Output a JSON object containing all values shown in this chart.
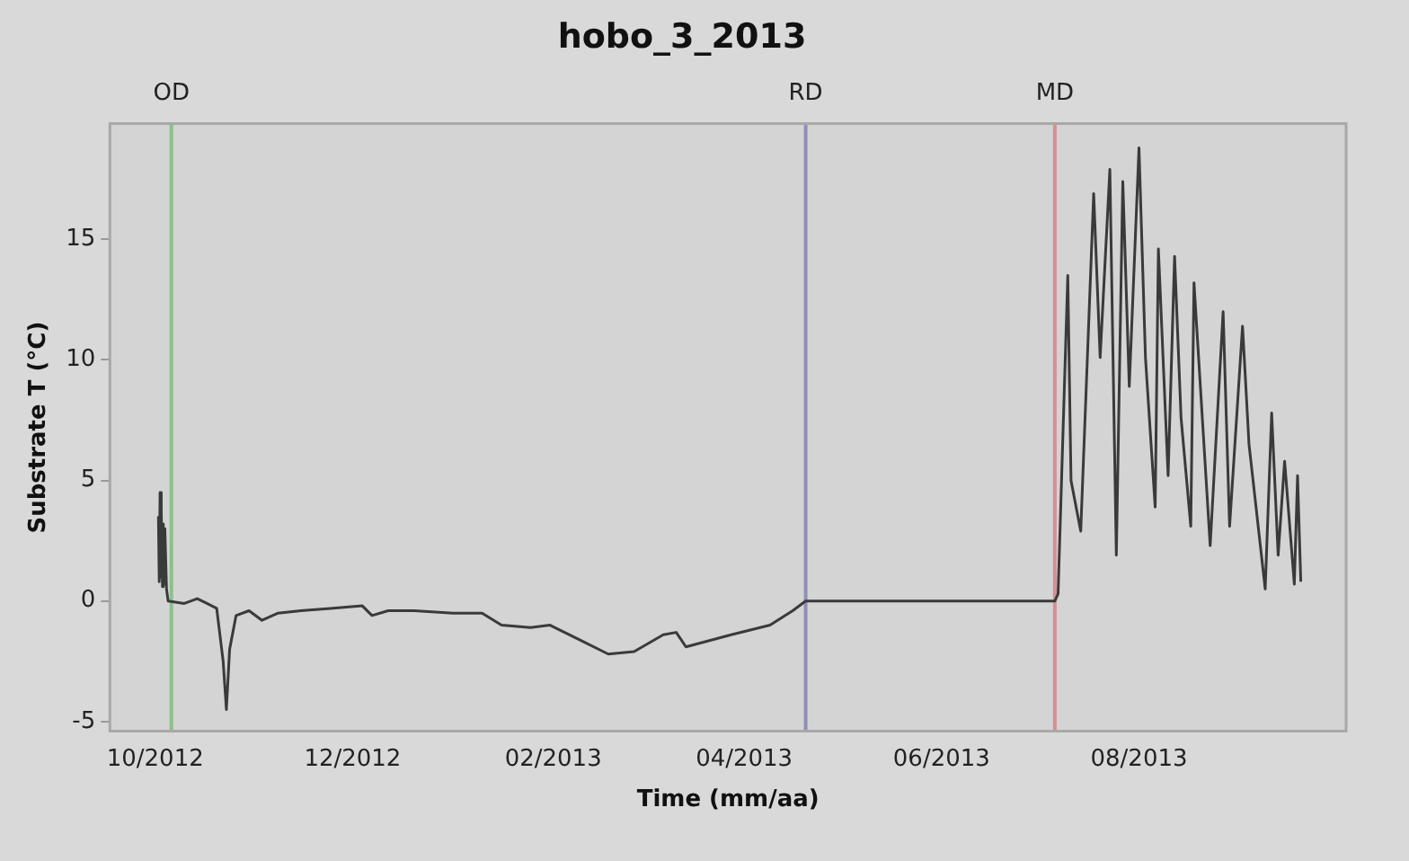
{
  "chart_data": {
    "type": "line",
    "title": "hobo_3_2013",
    "xlabel": "Time (mm/aa)",
    "ylabel": "Substrate T (°C)",
    "x": [
      "2012-10-02T00:00",
      "2012-10-02T06:00",
      "2012-10-02T12:00",
      "2012-10-02T18:00",
      "2012-10-03T00:00",
      "2012-10-03T06:00",
      "2012-10-03T12:00",
      "2012-10-03T18:00",
      "2012-10-04T00:00",
      "2012-10-04T12:00",
      "2012-10-05",
      "2012-10-10",
      "2012-10-14",
      "2012-10-17",
      "2012-10-20",
      "2012-10-22",
      "2012-10-23",
      "2012-10-24",
      "2012-10-26",
      "2012-10-30",
      "2012-11-03",
      "2012-11-08",
      "2012-11-15",
      "2012-11-25",
      "2012-12-04",
      "2012-12-07",
      "2012-12-12",
      "2012-12-20",
      "2013-01-01",
      "2013-01-10",
      "2013-01-16",
      "2013-01-25",
      "2013-01-31",
      "2013-02-09",
      "2013-02-18",
      "2013-02-26",
      "2013-03-07",
      "2013-03-11",
      "2013-03-14",
      "2013-03-28",
      "2013-04-09",
      "2013-04-16",
      "2013-04-20",
      "2013-07-06",
      "2013-07-07",
      "2013-07-10",
      "2013-07-11",
      "2013-07-14",
      "2013-07-18",
      "2013-07-20",
      "2013-07-23",
      "2013-07-25",
      "2013-07-27",
      "2013-07-29",
      "2013-08-01",
      "2013-08-03",
      "2013-08-06",
      "2013-08-07",
      "2013-08-10",
      "2013-08-12",
      "2013-08-14",
      "2013-08-17",
      "2013-08-18",
      "2013-08-23",
      "2013-08-27",
      "2013-08-29",
      "2013-09-02",
      "2013-09-04",
      "2013-09-09",
      "2013-09-11",
      "2013-09-13",
      "2013-09-15",
      "2013-09-18",
      "2013-09-19",
      "2013-09-20"
    ],
    "series": [
      {
        "color": "#3a3a3a",
        "values": [
          3.5,
          0.8,
          4.5,
          1.0,
          3.8,
          0.6,
          3.2,
          0.7,
          3.0,
          0.5,
          0.0,
          -0.1,
          0.1,
          -0.1,
          -0.3,
          -2.5,
          -4.5,
          -2.0,
          -0.6,
          -0.4,
          -0.8,
          -0.5,
          -0.4,
          -0.3,
          -0.2,
          -0.6,
          -0.4,
          -0.4,
          -0.5,
          -0.5,
          -1.0,
          -1.1,
          -1.0,
          -1.6,
          -2.2,
          -2.1,
          -1.4,
          -1.3,
          -1.9,
          -1.4,
          -1.0,
          -0.4,
          0.0,
          0.0,
          0.3,
          13.5,
          5.0,
          2.9,
          16.9,
          10.1,
          17.9,
          1.9,
          17.4,
          8.9,
          18.8,
          10.1,
          3.9,
          14.6,
          5.2,
          14.3,
          7.6,
          3.1,
          13.2,
          2.3,
          12.0,
          3.1,
          11.4,
          6.5,
          0.5,
          7.8,
          1.9,
          5.8,
          0.7,
          5.2,
          0.8
        ]
      }
    ],
    "xlim": [
      "2012-09-17",
      "2013-10-04"
    ],
    "xticks": [
      {
        "value": "2012-10-01",
        "label": "10/2012"
      },
      {
        "value": "2012-12-01",
        "label": "12/2012"
      },
      {
        "value": "2013-02-01",
        "label": "02/2013"
      },
      {
        "value": "2013-04-01",
        "label": "04/2013"
      },
      {
        "value": "2013-06-01",
        "label": "06/2013"
      },
      {
        "value": "2013-08-01",
        "label": "08/2013"
      }
    ],
    "ylim": [
      -5.4,
      19.8
    ],
    "yticks": [
      -5,
      0,
      5,
      10,
      15
    ],
    "ref_lines": [
      {
        "axis": "x",
        "value": "2012-10-06",
        "label": "OD",
        "color": "#8cc08c"
      },
      {
        "axis": "x",
        "value": "2013-04-20",
        "label": "RD",
        "color": "#9090b8"
      },
      {
        "axis": "x",
        "value": "2013-07-06",
        "label": "MD",
        "color": "#d49090"
      }
    ],
    "grid": false,
    "legend": false,
    "marker": "none",
    "line_style": "solid"
  }
}
